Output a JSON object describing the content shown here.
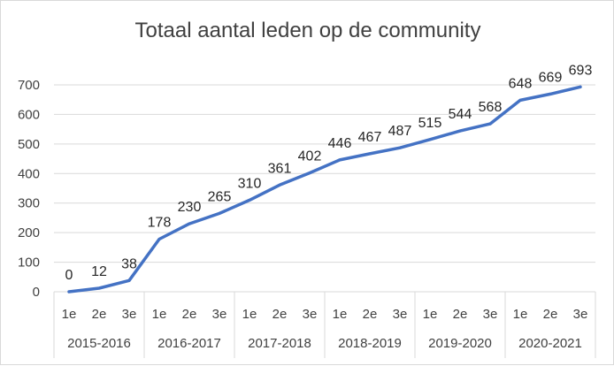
{
  "chart_data": {
    "type": "line",
    "title": "Totaal aantal leden op de community",
    "xlabel": "",
    "ylabel": "",
    "ylim": [
      0,
      700
    ],
    "yticks": [
      0,
      100,
      200,
      300,
      400,
      500,
      600,
      700
    ],
    "grid": true,
    "legend": "none",
    "line_color": "#4472c4",
    "groups": [
      "2015-2016",
      "2016-2017",
      "2017-2018",
      "2018-2019",
      "2019-2020",
      "2020-2021"
    ],
    "sub_categories": [
      "1e",
      "2e",
      "3e"
    ],
    "values": [
      0,
      12,
      38,
      178,
      230,
      265,
      310,
      361,
      402,
      446,
      467,
      487,
      515,
      544,
      568,
      648,
      669,
      693
    ]
  }
}
